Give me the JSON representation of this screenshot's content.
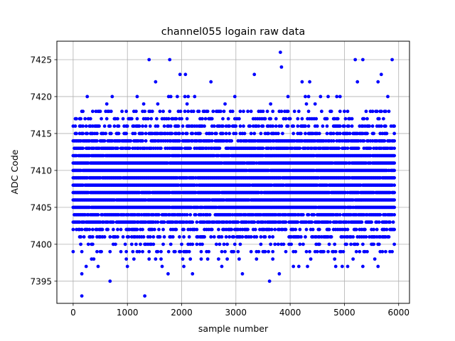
{
  "chart_data": {
    "type": "scatter",
    "title": "channel055 logain raw data",
    "xlabel": "sample number",
    "ylabel": "ADC Code",
    "xlim": [
      -300,
      6200
    ],
    "ylim": [
      7392,
      7427.5
    ],
    "xticks": [
      0,
      1000,
      2000,
      3000,
      4000,
      5000,
      6000
    ],
    "yticks": [
      7395,
      7400,
      7405,
      7410,
      7415,
      7420,
      7425
    ],
    "grid": true,
    "marker_color": "#0000ff",
    "n_samples": 5920,
    "sample_step": 20,
    "core_range": [
      7401,
      7416
    ],
    "outliers": [
      {
        "x": 160,
        "y": 7393
      },
      {
        "x": 1320,
        "y": 7393
      },
      {
        "x": 160,
        "y": 7396
      },
      {
        "x": 1750,
        "y": 7396
      },
      {
        "x": 2200,
        "y": 7396
      },
      {
        "x": 3120,
        "y": 7396
      },
      {
        "x": 3800,
        "y": 7396
      },
      {
        "x": 680,
        "y": 7395
      },
      {
        "x": 3620,
        "y": 7395
      },
      {
        "x": 1400,
        "y": 7425
      },
      {
        "x": 1780,
        "y": 7425
      },
      {
        "x": 3820,
        "y": 7426
      },
      {
        "x": 5200,
        "y": 7425
      },
      {
        "x": 5340,
        "y": 7425
      },
      {
        "x": 5880,
        "y": 7425
      },
      {
        "x": 3840,
        "y": 7424
      },
      {
        "x": 1970,
        "y": 7423
      },
      {
        "x": 2070,
        "y": 7423
      },
      {
        "x": 3340,
        "y": 7423
      },
      {
        "x": 5680,
        "y": 7423
      },
      {
        "x": 1520,
        "y": 7422
      },
      {
        "x": 2540,
        "y": 7422
      },
      {
        "x": 4220,
        "y": 7422
      },
      {
        "x": 4360,
        "y": 7422
      },
      {
        "x": 5240,
        "y": 7422
      },
      {
        "x": 5620,
        "y": 7422
      }
    ]
  }
}
